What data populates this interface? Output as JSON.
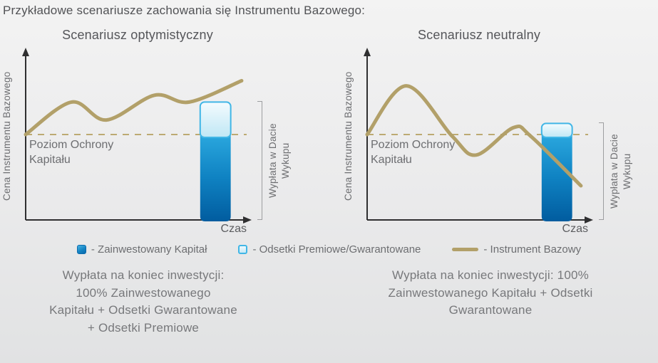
{
  "page": {
    "title": "Przykładowe scenariusze zachowania się Instrumentu Bazowego:"
  },
  "colors": {
    "underlying_line": "#b2a069",
    "protection_dash": "#bcaa72",
    "capital_bar_top": "#2aa7de",
    "capital_bar_bottom": "#015c9f",
    "premium_cap_fill": "#d9f1fa",
    "premium_cap_border": "#41b6e6",
    "axis": "#2f2f30",
    "text": "#6d6e71"
  },
  "chart_data": [
    {
      "type": "line",
      "scenario": "optimistic",
      "title": "Scenariusz optymistyczny",
      "xlabel": "Czas",
      "ylabel": "Cena Instrumentu Bazowego",
      "x_range": [
        0,
        100
      ],
      "grid": false,
      "protection_line": {
        "label": "Poziom Ochrony Kapitału",
        "value": 100,
        "style": "dashed"
      },
      "payout_label": [
        "Wypłata w Dacie",
        "Wykupu"
      ],
      "underlying_series": {
        "name": "Instrument Bazowy",
        "x": [
          0,
          21,
          37,
          59,
          75,
          99
        ],
        "y": [
          100,
          138,
          117,
          146,
          138,
          163
        ]
      },
      "payout_bar": {
        "x": [
          80,
          94
        ],
        "segments": [
          {
            "name": "Zainwestowany Kapitał",
            "from": 0,
            "to": 100
          },
          {
            "name": "Odsetki Premiowe/Gwarantowane",
            "from": 100,
            "to": 138
          }
        ]
      }
    },
    {
      "type": "line",
      "scenario": "neutral",
      "title": "Scenariusz neutralny",
      "xlabel": "Czas",
      "ylabel": "Cena Instrumentu Bazowego",
      "x_range": [
        0,
        100
      ],
      "grid": false,
      "protection_line": {
        "label": "Poziom Ochrony Kapitału",
        "value": 100,
        "style": "dashed"
      },
      "payout_label": [
        "Wypłata w Dacie",
        "Wykupu"
      ],
      "underlying_series": {
        "name": "Instrument Bazowy",
        "x": [
          0,
          18,
          39,
          50,
          67,
          75,
          98
        ],
        "y": [
          100,
          157,
          98,
          76,
          108,
          98,
          40
        ]
      },
      "payout_bar": {
        "x": [
          80,
          94
        ],
        "segments": [
          {
            "name": "Zainwestowany Kapitał",
            "from": 0,
            "to": 100
          },
          {
            "name": "Odsetki Premiowe/Gwarantowane",
            "from": 100,
            "to": 113
          }
        ]
      }
    }
  ],
  "legend": {
    "items": [
      {
        "icon": "invested-capital-swatch",
        "label": "- Zainwestowany Kapitał"
      },
      {
        "icon": "premium-interest-swatch",
        "label": "- Odsetki Premiowe/Gwarantowane"
      },
      {
        "icon": "underlying-line-swatch",
        "label": "- Instrument Bazowy"
      }
    ]
  },
  "summaries": [
    {
      "lines": [
        "Wypłata na koniec inwestycji:",
        "100% Zainwestowanego",
        "Kapitału + Odsetki Gwarantowane",
        "+ Odsetki Premiowe"
      ]
    },
    {
      "lines": [
        "Wypłata na koniec inwestycji: 100%",
        "Zainwestowanego Kapitału + Odsetki",
        "Gwarantowane"
      ]
    }
  ]
}
